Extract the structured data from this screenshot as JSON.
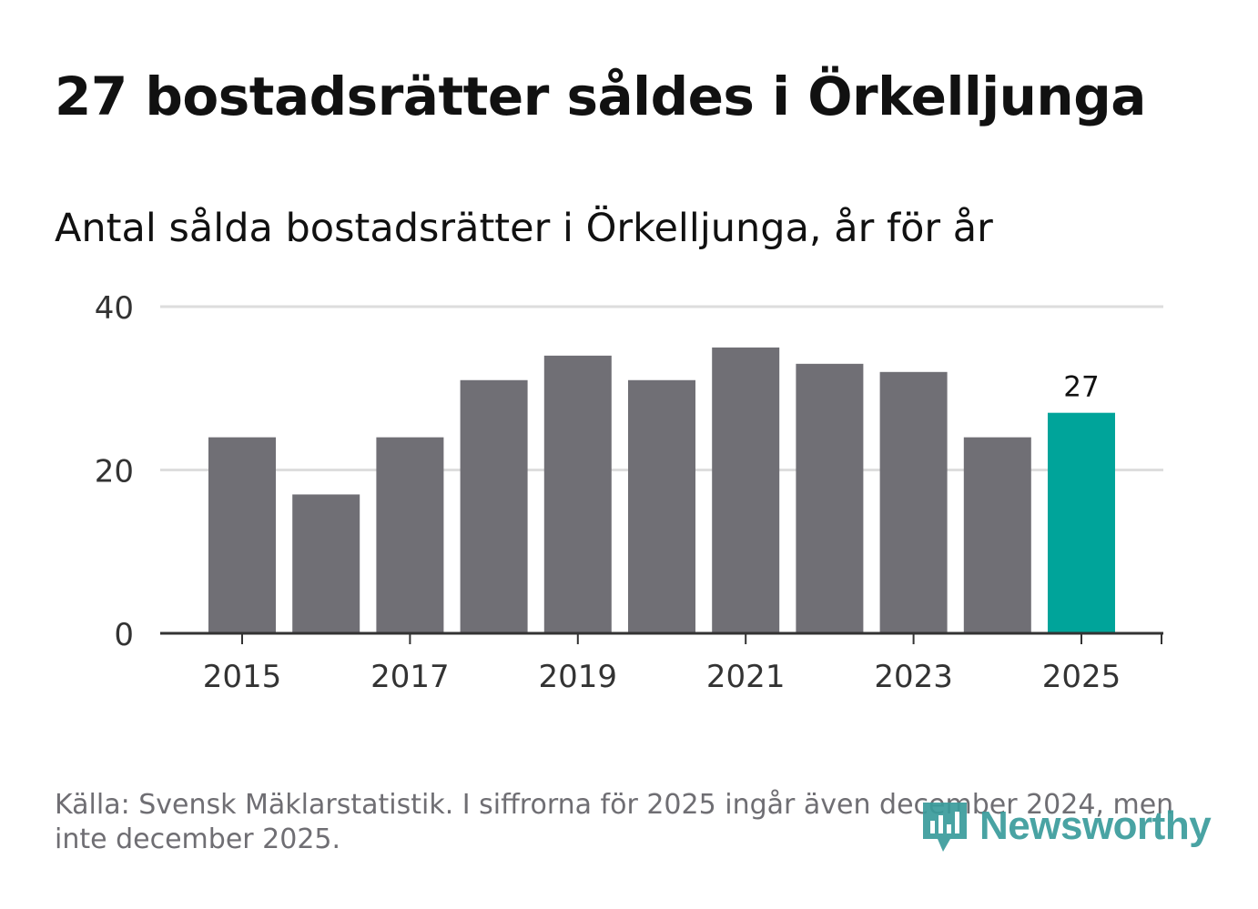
{
  "chart_data": {
    "type": "bar",
    "title": "27 bostadsrätter såldes i Örkelljunga",
    "subtitle": "Antal sålda bostadsrätter i Örkelljunga, år för år",
    "categories": [
      "2015",
      "2016",
      "2017",
      "2018",
      "2019",
      "2020",
      "2021",
      "2022",
      "2023",
      "2024",
      "2025"
    ],
    "values": [
      24,
      17,
      24,
      31,
      34,
      31,
      35,
      33,
      32,
      24,
      27
    ],
    "x_tick_labels": [
      "2015",
      "2017",
      "2019",
      "2021",
      "2023",
      "2025"
    ],
    "y_ticks": [
      0,
      20,
      40
    ],
    "ylim": [
      0,
      40
    ],
    "xlabel": "",
    "ylabel": "",
    "highlight_index": 10,
    "highlight_label": "27",
    "colors": {
      "bar": "#706f75",
      "highlight": "#00a49a",
      "grid": "#dddddd",
      "axis": "#333333"
    }
  },
  "footer": {
    "source": "Källa: Svensk Mäklarstatistik. I siffrorna för 2025 ingår även december 2024, men inte december 2025."
  },
  "brand": {
    "name": "Newsworthy",
    "icon": "newsworthy-logo-icon"
  }
}
